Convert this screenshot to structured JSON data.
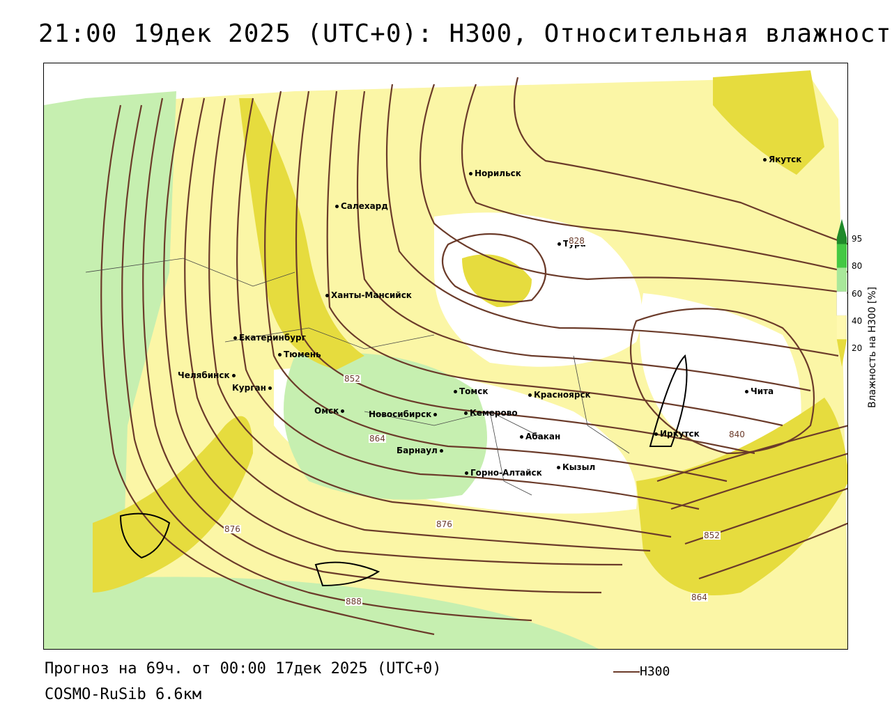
{
  "title": "21:00 19дек 2025 (UTC+0): H300, Относительная влажность",
  "footer": {
    "forecast": "Прогноз на 69ч. от 00:00 17дек 2025 (UTC+0)",
    "model": "COSMO-RuSib 6.6км",
    "legend_label": "H300"
  },
  "colorbar": {
    "title": "Влажность на H300 [%]",
    "ticks": [
      "95",
      "80",
      "60",
      "40",
      "20"
    ],
    "colors": {
      "c20": "#ffe88a",
      "c40": "#fff9b0",
      "c60": "#ffffff",
      "c60b": "#d8f5c8",
      "c80": "#a8e89a",
      "c95": "#44c844",
      "c100": "#1f8a2a"
    }
  },
  "colors": {
    "contour": "#6b3b2a",
    "yellow_dark": "#e6dc3e",
    "yellow_light": "#fbf6a6",
    "green_light": "#c6efb0",
    "green_mid": "#9fe08e",
    "border": "#000000"
  },
  "cities": [
    "Якутск",
    "Норильск",
    "Салехард",
    "Тура",
    "Ханты-Мансийск",
    "Екатеринбург",
    "Тюмень",
    "Челябинск",
    "Курган",
    "Омск",
    "Томск",
    "Красноярск",
    "Чита",
    "Кемерово",
    "Новосибирск",
    "Абакан",
    "Иркутск",
    "Барнаул",
    "Кызыл",
    "Горно-Алтайск"
  ],
  "contour_labels": [
    "828",
    "852",
    "864",
    "840",
    "876",
    "876",
    "852",
    "864",
    "888"
  ]
}
